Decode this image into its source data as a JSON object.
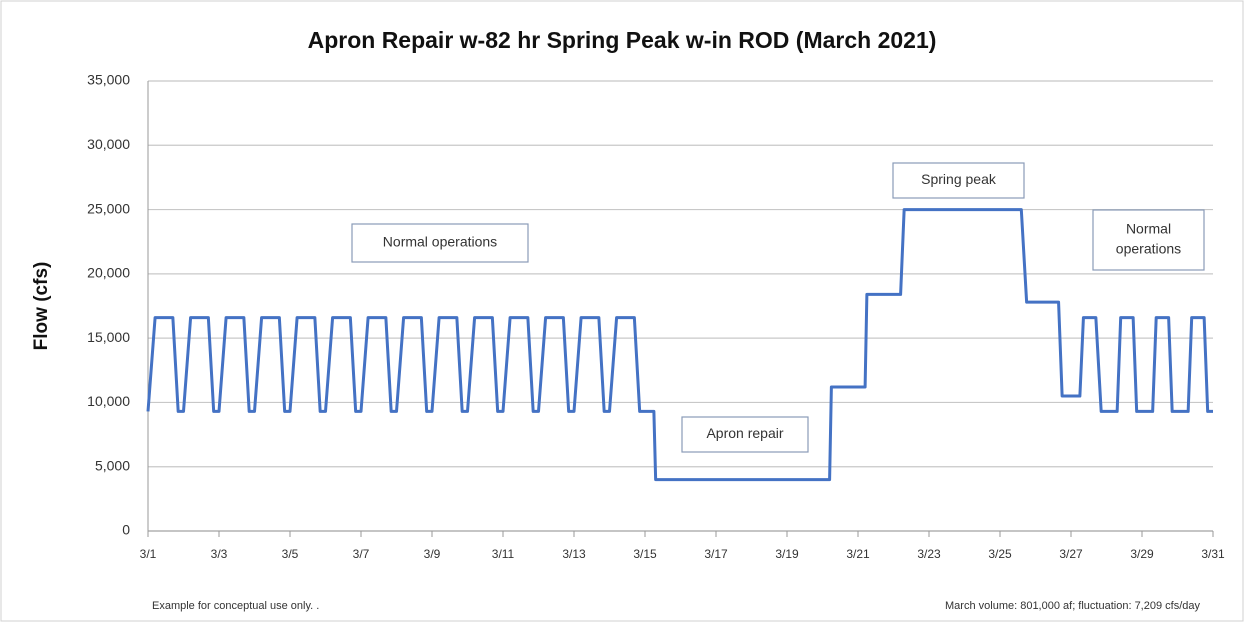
{
  "chart_data": {
    "type": "line",
    "title": "Apron Repair w-82 hr Spring Peak w-in ROD (March 2021)",
    "y_label": "Flow (cfs)",
    "x": [
      1,
      1.2,
      1.7,
      1.85,
      2,
      2.2,
      2.7,
      2.85,
      3,
      3.2,
      3.7,
      3.85,
      4,
      4.2,
      4.7,
      4.85,
      5,
      5.2,
      5.7,
      5.85,
      6,
      6.2,
      6.7,
      6.85,
      7,
      7.2,
      7.7,
      7.85,
      8,
      8.2,
      8.7,
      8.85,
      9,
      9.2,
      9.7,
      9.85,
      10,
      10.2,
      10.7,
      10.85,
      11,
      11.2,
      11.7,
      11.85,
      12,
      12.2,
      12.7,
      12.85,
      13,
      13.2,
      13.7,
      13.85,
      14,
      14.2,
      14.7,
      14.85,
      15.25,
      15.3,
      20.2,
      20.25,
      21.2,
      21.25,
      22.2,
      22.3,
      25.6,
      25.75,
      26.65,
      26.75,
      27.25,
      27.35,
      27.7,
      27.85,
      28.3,
      28.4,
      28.75,
      28.85,
      29.3,
      29.4,
      29.75,
      29.85,
      30.3,
      30.4,
      30.75,
      30.85,
      31
    ],
    "values": [
      9300,
      16600,
      16600,
      9300,
      9300,
      16600,
      16600,
      9300,
      9300,
      16600,
      16600,
      9300,
      9300,
      16600,
      16600,
      9300,
      9300,
      16600,
      16600,
      9300,
      9300,
      16600,
      16600,
      9300,
      9300,
      16600,
      16600,
      9300,
      9300,
      16600,
      16600,
      9300,
      9300,
      16600,
      16600,
      9300,
      9300,
      16600,
      16600,
      9300,
      9300,
      16600,
      16600,
      9300,
      9300,
      16600,
      16600,
      9300,
      9300,
      16600,
      16600,
      9300,
      9300,
      16600,
      16600,
      9300,
      9300,
      4000,
      4000,
      11200,
      11200,
      18400,
      18400,
      25000,
      25000,
      17800,
      17800,
      10500,
      10500,
      16600,
      16600,
      9300,
      9300,
      16600,
      16600,
      9300,
      9300,
      16600,
      16600,
      9300,
      9300,
      16600,
      16600,
      9300,
      9300
    ],
    "color": "#4472c4",
    "xlim": [
      1,
      31
    ],
    "xticks": [
      {
        "value": 1,
        "label": "3/1"
      },
      {
        "value": 3,
        "label": "3/3"
      },
      {
        "value": 5,
        "label": "3/5"
      },
      {
        "value": 7,
        "label": "3/7"
      },
      {
        "value": 9,
        "label": "3/9"
      },
      {
        "value": 11,
        "label": "3/11"
      },
      {
        "value": 13,
        "label": "3/13"
      },
      {
        "value": 15,
        "label": "3/15"
      },
      {
        "value": 17,
        "label": "3/17"
      },
      {
        "value": 19,
        "label": "3/19"
      },
      {
        "value": 21,
        "label": "3/21"
      },
      {
        "value": 23,
        "label": "3/23"
      },
      {
        "value": 25,
        "label": "3/25"
      },
      {
        "value": 27,
        "label": "3/27"
      },
      {
        "value": 29,
        "label": "3/29"
      },
      {
        "value": 31,
        "label": "3/31"
      }
    ],
    "ylim": [
      0,
      35000
    ],
    "yticks": [
      0,
      {
        "value": 5000,
        "label": "5,000"
      },
      {
        "value": 10000,
        "label": "10,000"
      },
      {
        "value": 15000,
        "label": "15,000"
      },
      {
        "value": 20000,
        "label": "20,000"
      },
      {
        "value": 25000,
        "label": "25,000"
      },
      {
        "value": 30000,
        "label": "30,000"
      },
      {
        "value": 35000,
        "label": "35,000"
      }
    ],
    "grid": true,
    "annotations": [
      [
        "Normal operations"
      ],
      [
        "Apron repair"
      ],
      [
        "Spring peak"
      ],
      [
        "Normal",
        "operations"
      ]
    ],
    "footnote_left": "Example for conceptual use only. .",
    "footnote_right": "March volume: 801,000 af; fluctuation: 7,209 cfs/day"
  }
}
